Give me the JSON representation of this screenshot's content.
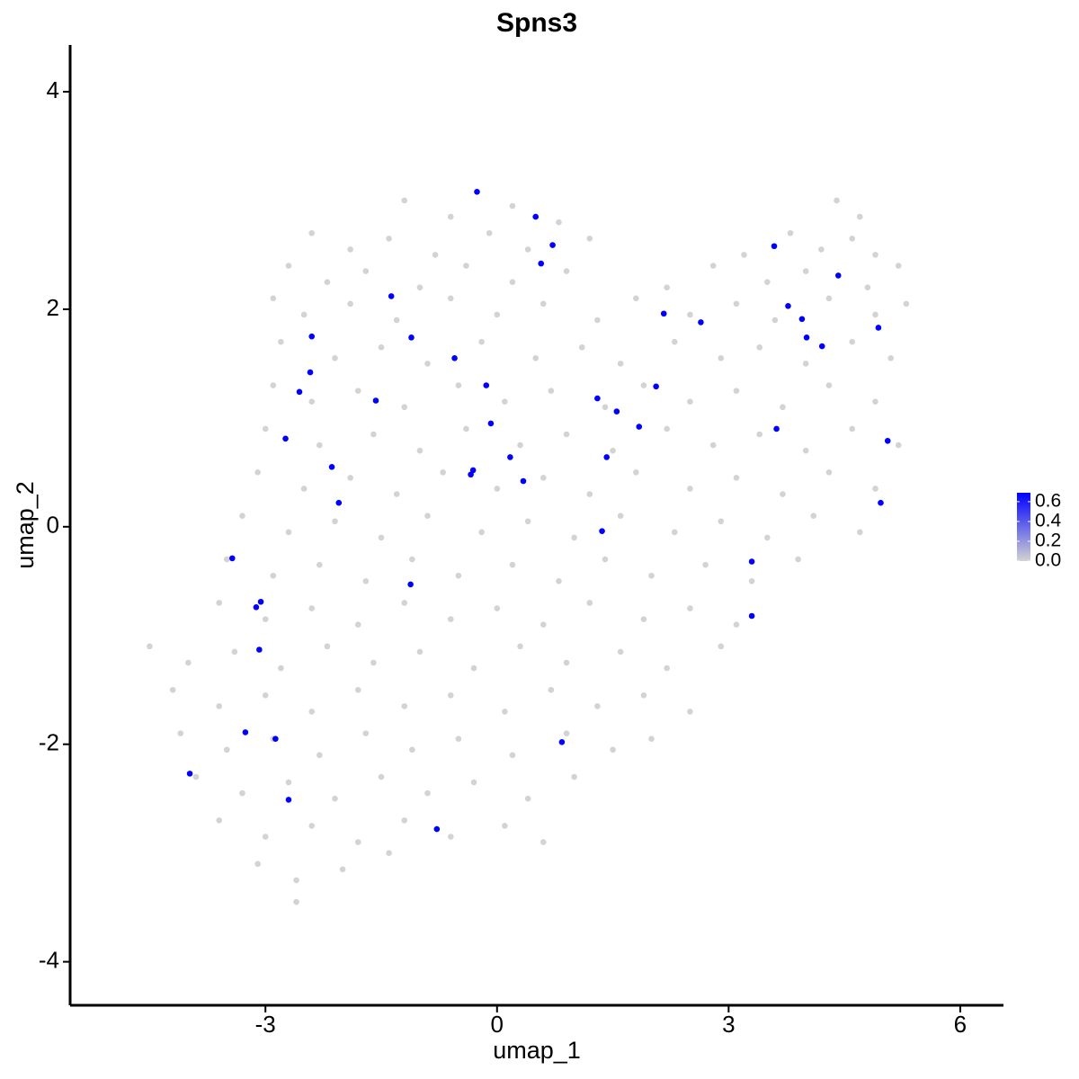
{
  "chart_data": {
    "type": "scatter",
    "title": "Spns3",
    "xlabel": "umap_1",
    "ylabel": "umap_2",
    "xlim": [
      -5.53,
      6.56
    ],
    "ylim": [
      -4.4,
      4.43
    ],
    "xticks": [
      -3,
      0,
      3,
      6
    ],
    "yticks": [
      -4,
      -2,
      0,
      2,
      4
    ],
    "grid": false,
    "colorbar": {
      "lim": [
        0,
        0.69
      ],
      "ticks": [
        {
          "value": 0,
          "label": "0.0"
        },
        0.2,
        0.4,
        0.6
      ],
      "low_color": "#d3d3d3",
      "high_color": "#0000ff"
    },
    "series": [
      {
        "x": [
          -1.2,
          -0.6,
          0.2,
          0.8,
          4.4,
          4.7,
          -2.4,
          -1.9,
          -1.4,
          -0.8,
          -0.1,
          0.4,
          1.2,
          3.2,
          3.8,
          4.2,
          4.6,
          4.9,
          -2.7,
          -2.2,
          -1.7,
          -1.0,
          -0.4,
          0.2,
          0.9,
          2.2,
          2.8,
          3.5,
          4.0,
          4.8,
          5.2,
          -2.9,
          -2.5,
          -1.9,
          -1.3,
          -0.6,
          0.0,
          0.6,
          1.3,
          1.8,
          2.5,
          3.1,
          3.6,
          4.3,
          4.9,
          5.3,
          -2.8,
          -2.1,
          -1.5,
          -0.9,
          -0.2,
          0.5,
          1.1,
          1.6,
          2.3,
          2.9,
          3.4,
          4.0,
          4.6,
          5.1,
          -2.9,
          -2.4,
          -1.8,
          -1.2,
          -0.5,
          0.1,
          0.7,
          1.4,
          1.9,
          2.5,
          3.1,
          3.7,
          4.3,
          4.9,
          -3.0,
          -2.3,
          -1.6,
          -1.0,
          -0.4,
          0.3,
          0.9,
          1.5,
          2.2,
          2.8,
          3.4,
          4.0,
          4.6,
          5.2,
          -3.1,
          -2.5,
          -1.9,
          -1.3,
          -0.7,
          0.0,
          0.6,
          1.2,
          1.8,
          2.5,
          3.1,
          3.7,
          4.3,
          4.9,
          -3.3,
          -2.7,
          -2.1,
          -1.5,
          -0.9,
          -0.2,
          0.4,
          1.0,
          1.6,
          2.3,
          2.9,
          3.5,
          4.1,
          4.7,
          -3.5,
          -2.9,
          -2.3,
          -1.7,
          -1.1,
          -0.5,
          0.2,
          0.8,
          1.4,
          2.0,
          2.7,
          3.3,
          3.9,
          -3.6,
          -3.0,
          -2.4,
          -1.8,
          -1.2,
          -0.6,
          0.0,
          0.6,
          1.2,
          1.9,
          2.5,
          3.1,
          -4.5,
          -4.0,
          -3.4,
          -2.8,
          -2.2,
          -1.6,
          -1.0,
          -0.3,
          0.3,
          0.9,
          1.6,
          2.2,
          2.9,
          -4.2,
          -3.6,
          -3.0,
          -2.4,
          -1.8,
          -1.2,
          -0.6,
          0.1,
          0.7,
          1.3,
          1.9,
          2.5,
          -4.1,
          -3.5,
          -2.9,
          -2.3,
          -1.7,
          -1.1,
          -0.5,
          0.2,
          0.9,
          1.5,
          2.0,
          -3.9,
          -3.3,
          -2.7,
          -2.1,
          -1.5,
          -0.9,
          -0.3,
          0.4,
          1.0,
          -3.6,
          -3.0,
          -2.4,
          -1.8,
          -1.2,
          -0.6,
          0.1,
          0.6,
          -3.1,
          -2.6,
          -2.0,
          -1.4,
          -2.6
        ],
        "y": [
          3.0,
          2.85,
          2.95,
          2.8,
          3.0,
          2.85,
          2.7,
          2.55,
          2.65,
          2.5,
          2.7,
          2.55,
          2.65,
          2.5,
          2.7,
          2.55,
          2.65,
          2.5,
          2.4,
          2.25,
          2.35,
          2.2,
          2.4,
          2.25,
          2.35,
          2.2,
          2.4,
          2.25,
          2.35,
          2.2,
          2.4,
          2.1,
          1.95,
          2.05,
          1.9,
          2.1,
          1.95,
          2.05,
          1.9,
          2.1,
          1.95,
          2.05,
          1.9,
          2.1,
          1.95,
          2.05,
          1.7,
          1.55,
          1.65,
          1.5,
          1.7,
          1.55,
          1.65,
          1.5,
          1.7,
          1.55,
          1.65,
          1.5,
          1.7,
          1.55,
          1.3,
          1.15,
          1.25,
          1.1,
          1.3,
          1.15,
          1.25,
          1.1,
          1.3,
          1.15,
          1.25,
          1.1,
          1.3,
          1.15,
          0.9,
          0.75,
          0.85,
          0.7,
          0.9,
          0.75,
          0.85,
          0.7,
          0.9,
          0.75,
          0.85,
          0.7,
          0.9,
          0.75,
          0.5,
          0.35,
          0.45,
          0.3,
          0.5,
          0.35,
          0.45,
          0.3,
          0.5,
          0.35,
          0.45,
          0.3,
          0.5,
          0.35,
          0.1,
          -0.05,
          0.05,
          -0.1,
          0.1,
          -0.05,
          0.05,
          -0.1,
          0.1,
          -0.05,
          0.05,
          -0.1,
          0.1,
          -0.05,
          -0.3,
          -0.45,
          -0.35,
          -0.5,
          -0.3,
          -0.45,
          -0.35,
          -0.5,
          -0.3,
          -0.45,
          -0.35,
          -0.5,
          -0.3,
          -0.7,
          -0.85,
          -0.75,
          -0.9,
          -0.7,
          -0.85,
          -0.75,
          -0.9,
          -0.7,
          -0.85,
          -0.75,
          -0.9,
          -1.1,
          -1.25,
          -1.15,
          -1.3,
          -1.1,
          -1.25,
          -1.15,
          -1.3,
          -1.1,
          -1.25,
          -1.15,
          -1.3,
          -1.1,
          -1.5,
          -1.65,
          -1.55,
          -1.7,
          -1.5,
          -1.65,
          -1.55,
          -1.7,
          -1.5,
          -1.65,
          -1.55,
          -1.7,
          -1.9,
          -2.05,
          -1.95,
          -2.1,
          -1.9,
          -2.05,
          -1.95,
          -2.1,
          -1.9,
          -2.05,
          -1.95,
          -2.3,
          -2.45,
          -2.35,
          -2.5,
          -2.3,
          -2.45,
          -2.35,
          -2.5,
          -2.3,
          -2.7,
          -2.85,
          -2.75,
          -2.9,
          -2.7,
          -2.85,
          -2.75,
          -2.9,
          -3.1,
          -3.25,
          -3.15,
          -3.0,
          -3.45
        ],
        "values": [
          0,
          0,
          0,
          0,
          0,
          0,
          0,
          0,
          0,
          0,
          0,
          0,
          0,
          0,
          0,
          0,
          0,
          0,
          0,
          0,
          0,
          0,
          0,
          0,
          0,
          0,
          0,
          0,
          0,
          0,
          0,
          0,
          0,
          0,
          0,
          0,
          0,
          0,
          0,
          0,
          0,
          0,
          0,
          0,
          0,
          0,
          0,
          0,
          0,
          0,
          0,
          0,
          0,
          0,
          0,
          0,
          0,
          0,
          0,
          0,
          0,
          0,
          0,
          0,
          0,
          0,
          0,
          0,
          0,
          0,
          0,
          0,
          0,
          0,
          0,
          0,
          0,
          0,
          0,
          0,
          0,
          0,
          0,
          0,
          0,
          0,
          0,
          0,
          0,
          0,
          0,
          0,
          0,
          0,
          0,
          0,
          0,
          0,
          0,
          0,
          0,
          0,
          0,
          0,
          0,
          0,
          0,
          0,
          0,
          0,
          0,
          0,
          0,
          0,
          0,
          0,
          0,
          0,
          0,
          0,
          0,
          0,
          0,
          0,
          0,
          0,
          0,
          0,
          0,
          0,
          0,
          0,
          0,
          0,
          0,
          0,
          0,
          0,
          0,
          0,
          0,
          0,
          0,
          0,
          0,
          0,
          0,
          0,
          0,
          0,
          0,
          0,
          0,
          0,
          0,
          0,
          0,
          0,
          0,
          0,
          0,
          0,
          0,
          0,
          0,
          0,
          0,
          0,
          0,
          0,
          0,
          0,
          0,
          0,
          0,
          0,
          0,
          0,
          0,
          0,
          0,
          0,
          0,
          0,
          0,
          0,
          0,
          0,
          0,
          0,
          0,
          0,
          0,
          0,
          0,
          0,
          0,
          0,
          0
        ]
      },
      {
        "x": [
          -0.26,
          0.5,
          0.72,
          0.57,
          3.59,
          4.42,
          -1.37,
          2.16,
          3.77,
          3.95,
          2.64,
          4.94,
          -2.4,
          -1.11,
          4.01,
          4.21,
          -0.55,
          -2.42,
          -0.14,
          2.06,
          -2.56,
          -1.57,
          1.3,
          1.55,
          -0.08,
          1.84,
          3.62,
          -2.74,
          5.06,
          0.17,
          1.42,
          -2.14,
          -0.31,
          -0.34,
          0.34,
          -2.05,
          4.97,
          1.36,
          -3.43,
          3.3,
          -1.12,
          -3.06,
          -3.12,
          3.3,
          -3.08,
          -3.26,
          -2.87,
          0.84,
          -3.98,
          -2.7,
          -0.78
        ],
        "y": [
          3.08,
          2.85,
          2.59,
          2.42,
          2.58,
          2.31,
          2.12,
          1.96,
          2.03,
          1.91,
          1.88,
          1.83,
          1.75,
          1.74,
          1.74,
          1.66,
          1.55,
          1.42,
          1.3,
          1.29,
          1.24,
          1.16,
          1.18,
          1.06,
          0.95,
          0.92,
          0.9,
          0.81,
          0.79,
          0.64,
          0.64,
          0.55,
          0.52,
          0.48,
          0.42,
          0.22,
          0.22,
          -0.04,
          -0.29,
          -0.32,
          -0.53,
          -0.69,
          -0.74,
          -0.82,
          -1.13,
          -1.89,
          -1.95,
          -1.98,
          -2.27,
          -2.51,
          -2.78
        ],
        "values": [
          0.69,
          0.69,
          0.69,
          0.69,
          0.69,
          0.69,
          0.69,
          0.69,
          0.69,
          0.69,
          0.69,
          0.69,
          0.69,
          0.69,
          0.69,
          0.69,
          0.69,
          0.69,
          0.69,
          0.69,
          0.69,
          0.69,
          0.69,
          0.69,
          0.69,
          0.69,
          0.69,
          0.69,
          0.69,
          0.69,
          0.69,
          0.69,
          0.69,
          0.69,
          0.69,
          0.69,
          0.69,
          0.69,
          0.69,
          0.69,
          0.69,
          0.69,
          0.69,
          0.69,
          0.69,
          0.69,
          0.69,
          0.69,
          0.69,
          0.69,
          0.69
        ]
      }
    ]
  }
}
